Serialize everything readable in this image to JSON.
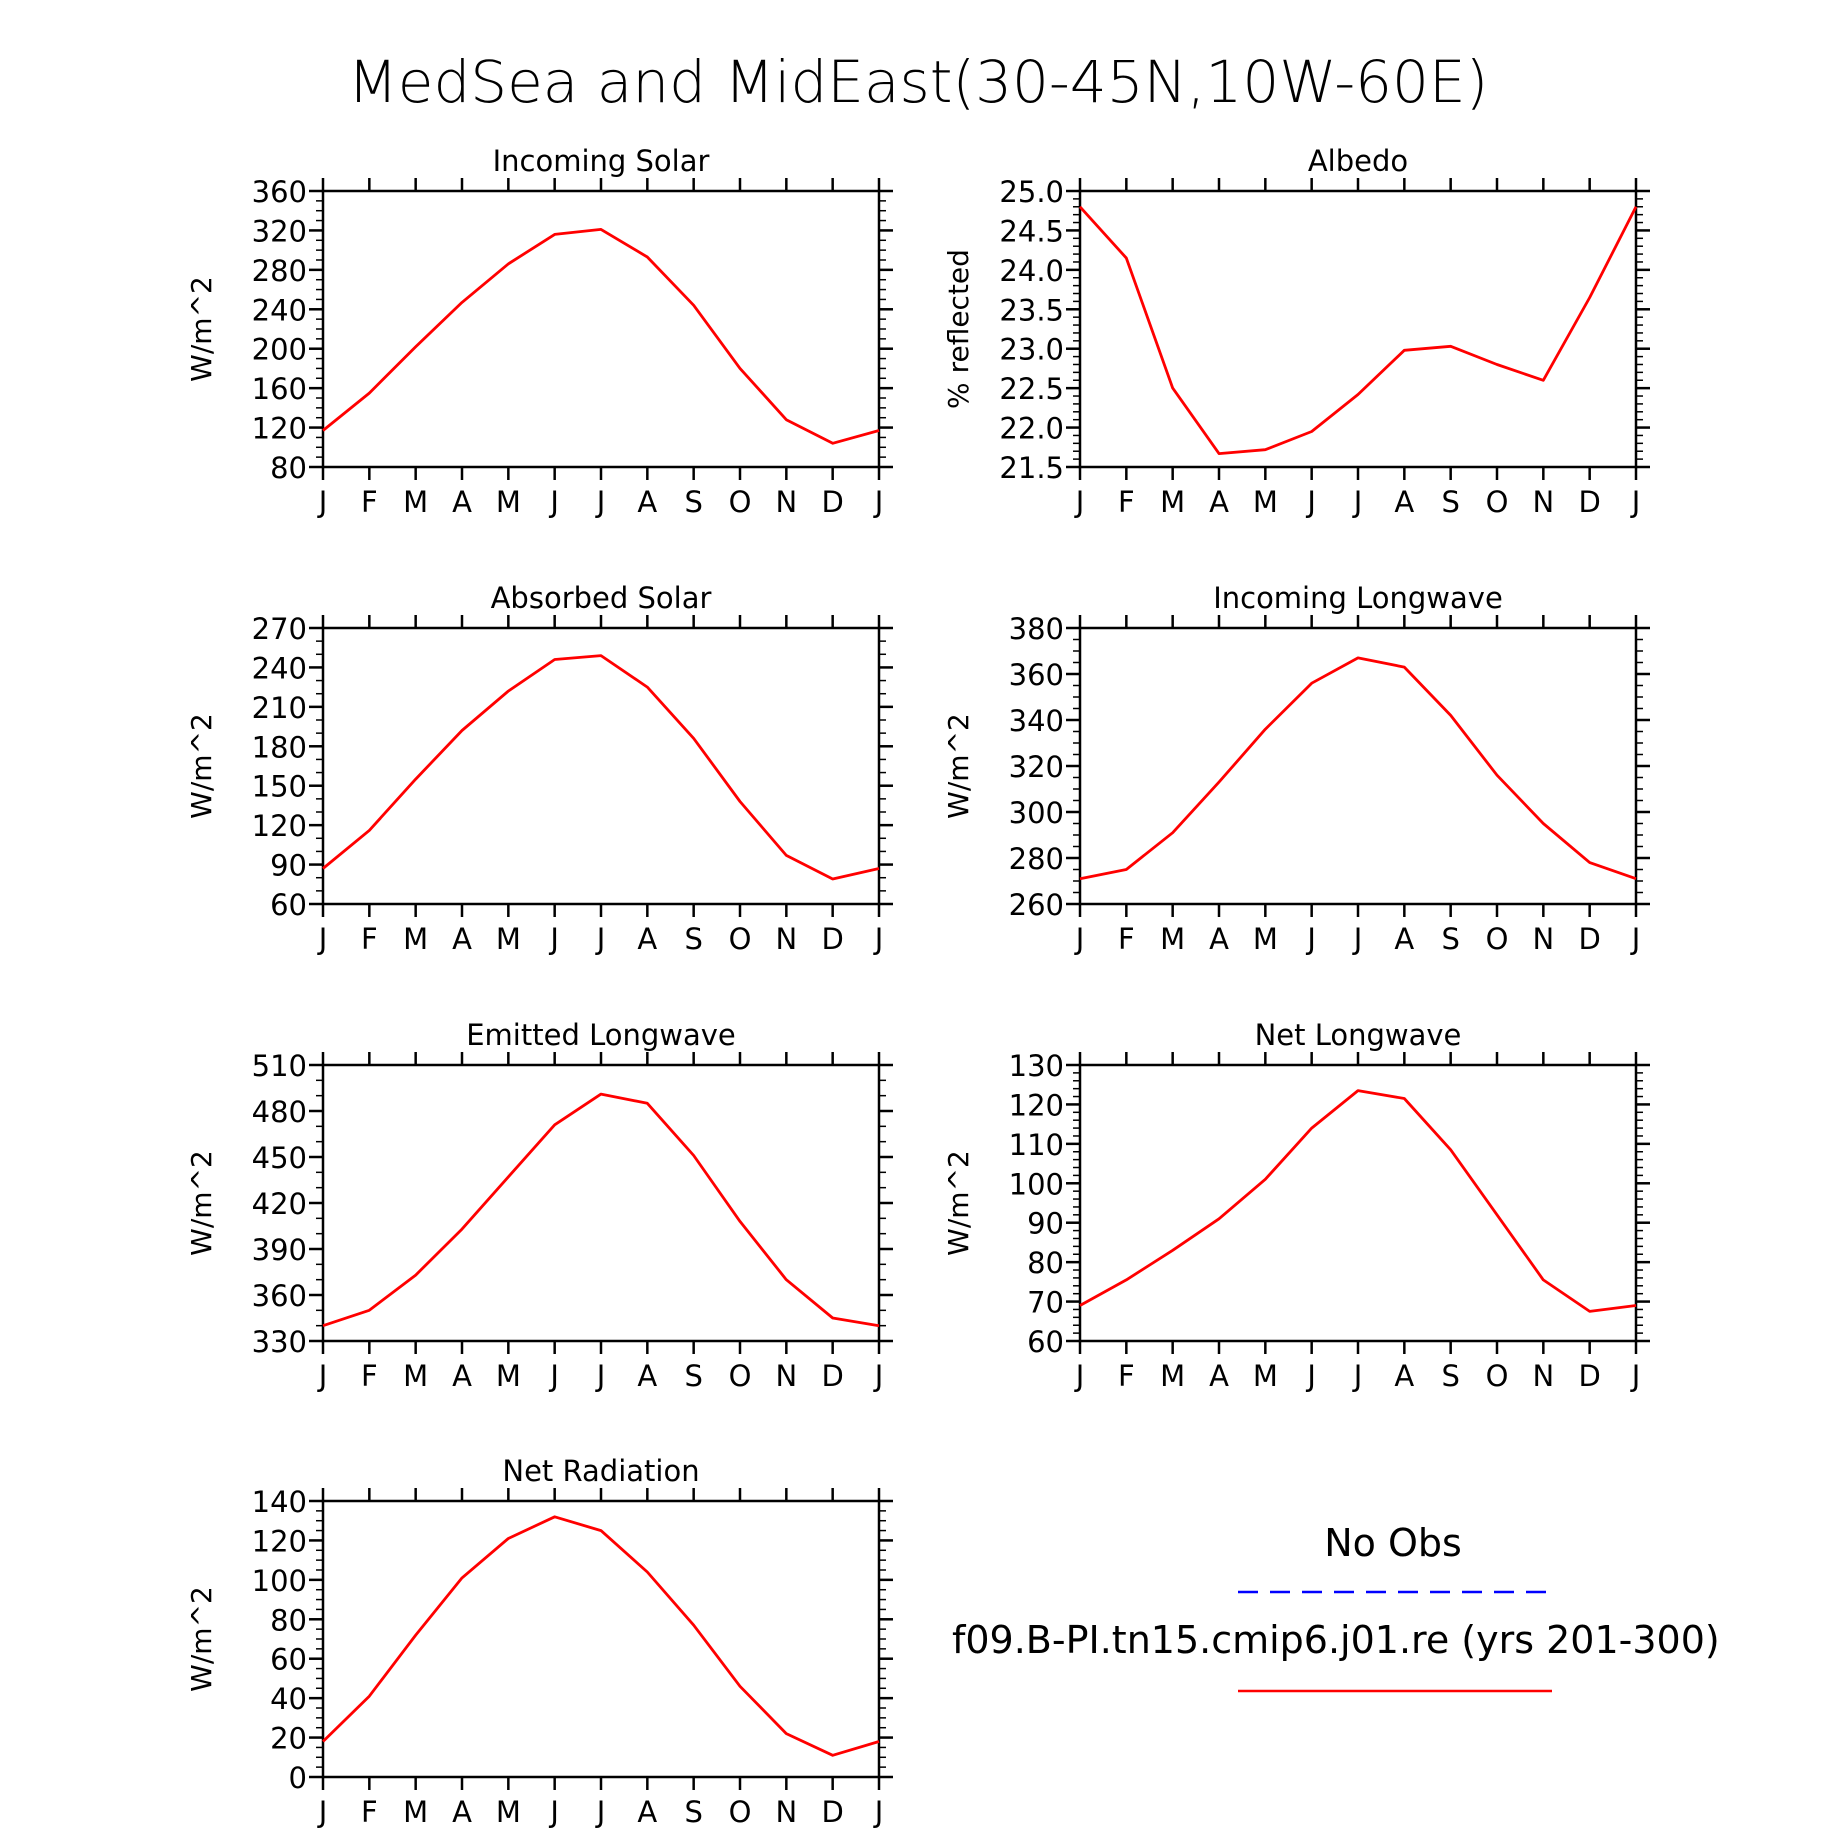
{
  "title": "MedSea and MidEast(30-45N,10W-60E)",
  "months": [
    "J",
    "F",
    "M",
    "A",
    "M",
    "J",
    "J",
    "A",
    "S",
    "O",
    "N",
    "D",
    "J"
  ],
  "colors": {
    "model": "#ff0000",
    "obs": "#0000ff"
  },
  "legend": {
    "obs_label": "No Obs",
    "model_label": "f09.B-PI.tn15.cmip6.j01.re (yrs 201-300)"
  },
  "chart_data": [
    {
      "type": "line",
      "title": "Incoming Solar",
      "ylabel": "W/m^2",
      "ylim": [
        80,
        360
      ],
      "yticks": [
        80,
        120,
        160,
        200,
        240,
        280,
        320,
        360
      ],
      "ytick_decimals": 0,
      "y_minor_step": 10,
      "series": [
        {
          "values": [
            117,
            155,
            202,
            247,
            286,
            316,
            321,
            293,
            244,
            180,
            128,
            104,
            117
          ]
        }
      ]
    },
    {
      "type": "line",
      "title": "Albedo",
      "ylabel": "% reflected",
      "ylim": [
        21.5,
        25.0
      ],
      "yticks": [
        21.5,
        22.0,
        22.5,
        23.0,
        23.5,
        24.0,
        24.5,
        25.0
      ],
      "ytick_decimals": 1,
      "y_minor_step": 0.1,
      "series": [
        {
          "values": [
            24.8,
            24.15,
            22.5,
            21.67,
            21.72,
            21.95,
            22.42,
            22.98,
            23.03,
            22.8,
            22.6,
            23.65,
            24.8
          ]
        }
      ]
    },
    {
      "type": "line",
      "title": "Absorbed Solar",
      "ylabel": "W/m^2",
      "ylim": [
        60,
        270
      ],
      "yticks": [
        60,
        90,
        120,
        150,
        180,
        210,
        240,
        270
      ],
      "ytick_decimals": 0,
      "y_minor_step": 10,
      "series": [
        {
          "values": [
            87,
            116,
            155,
            192,
            222,
            246,
            249,
            225,
            186,
            138,
            97,
            79,
            87
          ]
        }
      ]
    },
    {
      "type": "line",
      "title": "Incoming Longwave",
      "ylabel": "W/m^2",
      "ylim": [
        260,
        380
      ],
      "yticks": [
        260,
        280,
        300,
        320,
        340,
        360,
        380
      ],
      "ytick_decimals": 0,
      "y_minor_step": 5,
      "series": [
        {
          "values": [
            271,
            275,
            291,
            313,
            336,
            356,
            367,
            363,
            342,
            316,
            295,
            278,
            271
          ]
        }
      ]
    },
    {
      "type": "line",
      "title": "Emitted Longwave",
      "ylabel": "W/m^2",
      "ylim": [
        330,
        510
      ],
      "yticks": [
        330,
        360,
        390,
        420,
        450,
        480,
        510
      ],
      "ytick_decimals": 0,
      "y_minor_step": 10,
      "series": [
        {
          "values": [
            340,
            350,
            373,
            403,
            437,
            471,
            491,
            485,
            451,
            408,
            370,
            345,
            340
          ]
        }
      ]
    },
    {
      "type": "line",
      "title": "Net Longwave",
      "ylabel": "W/m^2",
      "ylim": [
        60,
        130
      ],
      "yticks": [
        60,
        70,
        80,
        90,
        100,
        110,
        120,
        130
      ],
      "ytick_decimals": 0,
      "y_minor_step": 2,
      "series": [
        {
          "values": [
            69,
            75.5,
            83,
            91,
            101,
            114,
            123.5,
            121.5,
            108.5,
            92,
            75.5,
            67.5,
            69
          ]
        }
      ]
    },
    {
      "type": "line",
      "title": "Net Radiation",
      "ylabel": "W/m^2",
      "ylim": [
        0,
        140
      ],
      "yticks": [
        0,
        20,
        40,
        60,
        80,
        100,
        120,
        140
      ],
      "ytick_decimals": 0,
      "y_minor_step": 5,
      "series": [
        {
          "values": [
            18,
            41,
            72,
            101,
            121,
            132,
            125,
            104,
            77,
            46,
            22,
            11,
            18
          ]
        }
      ]
    }
  ]
}
